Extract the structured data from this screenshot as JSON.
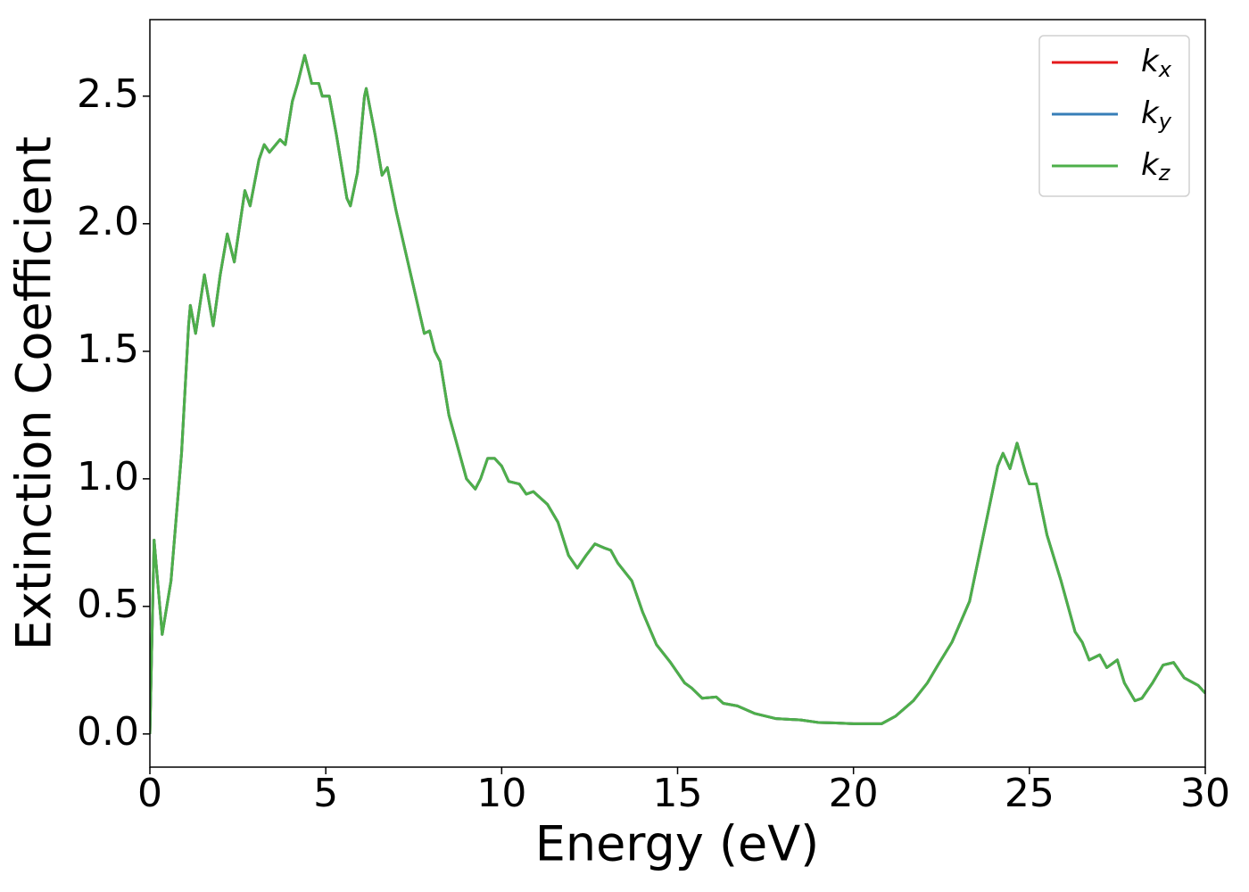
{
  "chart_data": {
    "type": "line",
    "xlabel": "Energy (eV)",
    "ylabel": "Extinction Coefficient",
    "x": [
      0,
      0.12,
      0.35,
      0.6,
      0.9,
      1.1,
      1.15,
      1.3,
      1.55,
      1.8,
      2.0,
      2.2,
      2.4,
      2.7,
      2.85,
      3.1,
      3.25,
      3.4,
      3.7,
      3.85,
      4.05,
      4.2,
      4.4,
      4.6,
      4.8,
      4.9,
      5.1,
      5.3,
      5.6,
      5.7,
      5.9,
      6.1,
      6.15,
      6.4,
      6.6,
      6.75,
      7.0,
      7.5,
      7.8,
      7.95,
      8.1,
      8.25,
      8.5,
      8.8,
      9.0,
      9.25,
      9.4,
      9.6,
      9.8,
      10.0,
      10.2,
      10.5,
      10.7,
      10.9,
      11.3,
      11.6,
      11.9,
      12.15,
      12.4,
      12.65,
      12.9,
      13.1,
      13.3,
      13.7,
      14.0,
      14.4,
      14.8,
      15.2,
      15.4,
      15.7,
      16.1,
      16.3,
      16.7,
      17.2,
      17.8,
      18.5,
      19.0,
      19.5,
      20.0,
      20.8,
      21.2,
      21.7,
      22.1,
      22.4,
      22.8,
      23.3,
      23.8,
      24.1,
      24.25,
      24.45,
      24.65,
      24.9,
      25.0,
      25.2,
      25.5,
      25.9,
      26.3,
      26.5,
      26.7,
      27.0,
      27.2,
      27.5,
      27.7,
      28.0,
      28.2,
      28.5,
      28.8,
      29.1,
      29.4,
      29.8,
      30.0
    ],
    "series": [
      {
        "name": "kx",
        "color": "#e41a1c",
        "values": [
          0,
          0.76,
          0.39,
          0.6,
          1.1,
          1.6,
          1.68,
          1.57,
          1.8,
          1.6,
          1.8,
          1.96,
          1.85,
          2.13,
          2.07,
          2.25,
          2.31,
          2.28,
          2.33,
          2.31,
          2.48,
          2.55,
          2.66,
          2.55,
          2.55,
          2.5,
          2.5,
          2.35,
          2.1,
          2.07,
          2.2,
          2.5,
          2.53,
          2.35,
          2.19,
          2.22,
          2.05,
          1.75,
          1.57,
          1.58,
          1.5,
          1.46,
          1.25,
          1.1,
          1.0,
          0.96,
          1.0,
          1.08,
          1.08,
          1.05,
          0.99,
          0.98,
          0.94,
          0.95,
          0.9,
          0.83,
          0.7,
          0.65,
          0.7,
          0.745,
          0.73,
          0.72,
          0.67,
          0.6,
          0.48,
          0.35,
          0.28,
          0.2,
          0.18,
          0.14,
          0.145,
          0.12,
          0.11,
          0.08,
          0.06,
          0.055,
          0.045,
          0.043,
          0.04,
          0.04,
          0.07,
          0.13,
          0.2,
          0.27,
          0.36,
          0.52,
          0.85,
          1.05,
          1.1,
          1.04,
          1.14,
          1.02,
          0.98,
          0.98,
          0.78,
          0.6,
          0.4,
          0.36,
          0.29,
          0.31,
          0.26,
          0.29,
          0.2,
          0.13,
          0.14,
          0.2,
          0.27,
          0.28,
          0.22,
          0.19,
          0.16
        ]
      },
      {
        "name": "ky",
        "color": "#377eb8",
        "values": [
          0,
          0.76,
          0.39,
          0.6,
          1.1,
          1.6,
          1.68,
          1.57,
          1.8,
          1.6,
          1.8,
          1.96,
          1.85,
          2.13,
          2.07,
          2.25,
          2.31,
          2.28,
          2.33,
          2.31,
          2.48,
          2.55,
          2.66,
          2.55,
          2.55,
          2.5,
          2.5,
          2.35,
          2.1,
          2.07,
          2.2,
          2.5,
          2.53,
          2.35,
          2.19,
          2.22,
          2.05,
          1.75,
          1.57,
          1.58,
          1.5,
          1.46,
          1.25,
          1.1,
          1.0,
          0.96,
          1.0,
          1.08,
          1.08,
          1.05,
          0.99,
          0.98,
          0.94,
          0.95,
          0.9,
          0.83,
          0.7,
          0.65,
          0.7,
          0.745,
          0.73,
          0.72,
          0.67,
          0.6,
          0.48,
          0.35,
          0.28,
          0.2,
          0.18,
          0.14,
          0.145,
          0.12,
          0.11,
          0.08,
          0.06,
          0.055,
          0.045,
          0.043,
          0.04,
          0.04,
          0.07,
          0.13,
          0.2,
          0.27,
          0.36,
          0.52,
          0.85,
          1.05,
          1.1,
          1.04,
          1.14,
          1.02,
          0.98,
          0.98,
          0.78,
          0.6,
          0.4,
          0.36,
          0.29,
          0.31,
          0.26,
          0.29,
          0.2,
          0.13,
          0.14,
          0.2,
          0.27,
          0.28,
          0.22,
          0.19,
          0.16
        ]
      },
      {
        "name": "kz",
        "color": "#4daf4a",
        "values": [
          0,
          0.76,
          0.39,
          0.6,
          1.1,
          1.6,
          1.68,
          1.57,
          1.8,
          1.6,
          1.8,
          1.96,
          1.85,
          2.13,
          2.07,
          2.25,
          2.31,
          2.28,
          2.33,
          2.31,
          2.48,
          2.55,
          2.66,
          2.55,
          2.55,
          2.5,
          2.5,
          2.35,
          2.1,
          2.07,
          2.2,
          2.5,
          2.53,
          2.35,
          2.19,
          2.22,
          2.05,
          1.75,
          1.57,
          1.58,
          1.5,
          1.46,
          1.25,
          1.1,
          1.0,
          0.96,
          1.0,
          1.08,
          1.08,
          1.05,
          0.99,
          0.98,
          0.94,
          0.95,
          0.9,
          0.83,
          0.7,
          0.65,
          0.7,
          0.745,
          0.73,
          0.72,
          0.67,
          0.6,
          0.48,
          0.35,
          0.28,
          0.2,
          0.18,
          0.14,
          0.145,
          0.12,
          0.11,
          0.08,
          0.06,
          0.055,
          0.045,
          0.043,
          0.04,
          0.04,
          0.07,
          0.13,
          0.2,
          0.27,
          0.36,
          0.52,
          0.85,
          1.05,
          1.1,
          1.04,
          1.14,
          1.02,
          0.98,
          0.98,
          0.78,
          0.6,
          0.4,
          0.36,
          0.29,
          0.31,
          0.26,
          0.29,
          0.2,
          0.13,
          0.14,
          0.2,
          0.27,
          0.28,
          0.22,
          0.19,
          0.16
        ]
      }
    ],
    "xlim": [
      0,
      30
    ],
    "xticks": [
      0,
      5,
      10,
      15,
      20,
      25,
      30
    ],
    "ylim": [
      -0.13,
      2.8
    ],
    "yticks": [
      {
        "value": 0,
        "label": "0.0"
      },
      0.5,
      {
        "value": 1,
        "label": "1.0"
      },
      1.5,
      {
        "value": 2,
        "label": "2.0"
      },
      2.5
    ],
    "grid": false,
    "legend": "upper right"
  }
}
